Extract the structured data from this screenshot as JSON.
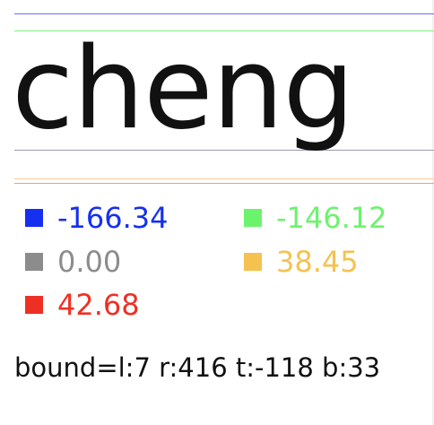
{
  "text_sample": "cheng",
  "lines": {
    "top_color": "#6b6ff7",
    "ascent_color": "#7ef07e",
    "baseline_color": "#9a9ab0",
    "descent_color": "#f8c9a0",
    "bottom_color": "#f2a070"
  },
  "metrics": [
    {
      "value": "-166.34",
      "color": "#1530f0"
    },
    {
      "value": "-146.12",
      "color": "#6cf36c"
    },
    {
      "value": "0.00",
      "color": "#8c8c8c"
    },
    {
      "value": "38.45",
      "color": "#f5c24f"
    },
    {
      "value": "42.68",
      "color": "#ee3024"
    }
  ],
  "bounds": "bound=l:7 r:416 t:-118 b:33"
}
